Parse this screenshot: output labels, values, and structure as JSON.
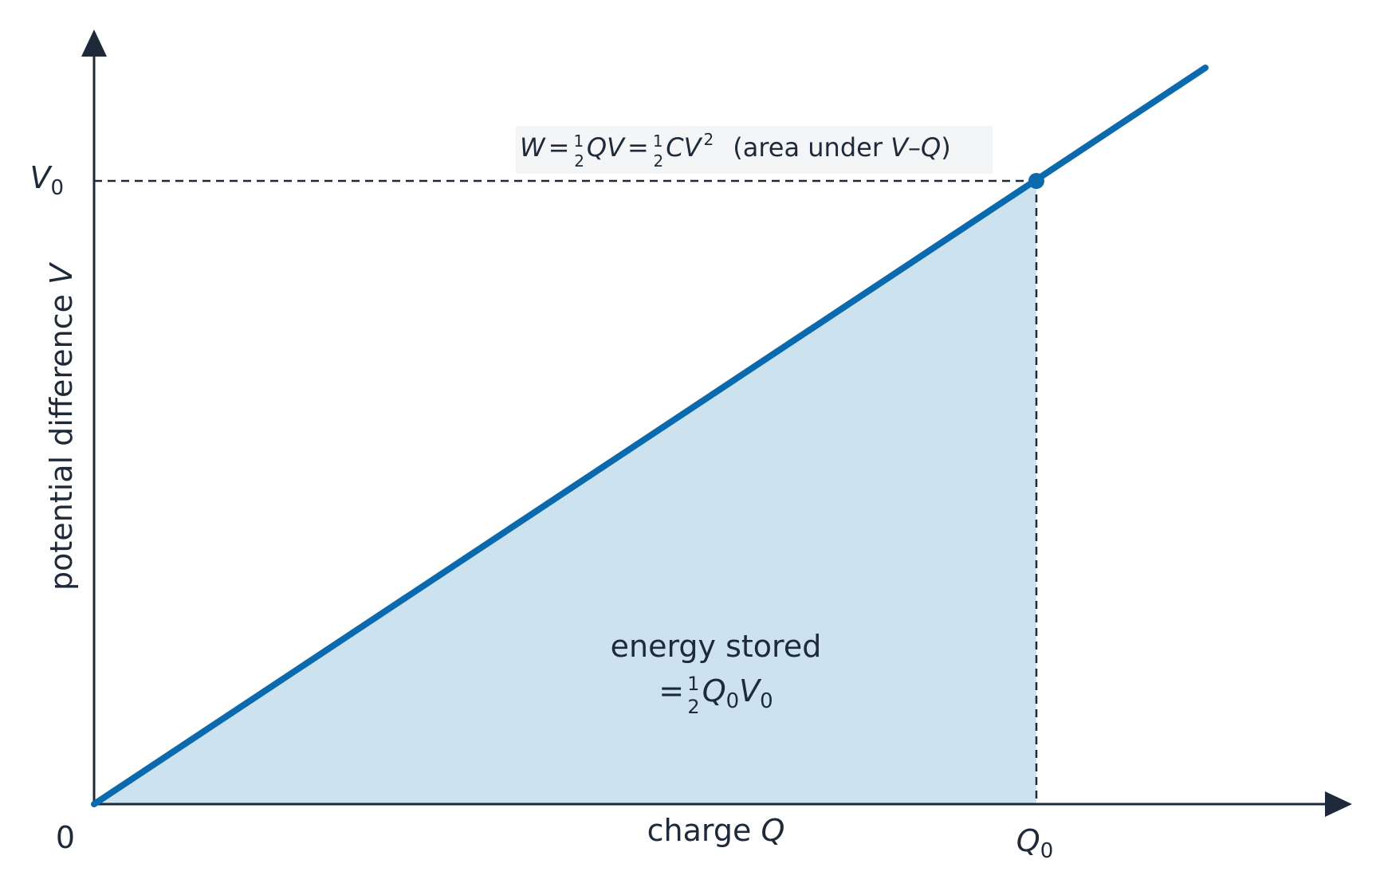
{
  "axes": {
    "y_label": [
      "potential difference ",
      "V"
    ],
    "x_label": [
      "charge ",
      "Q"
    ],
    "origin": "0",
    "v0": [
      "V",
      "0"
    ],
    "q0": [
      "Q",
      "0"
    ]
  },
  "formula": [
    "W",
    "=",
    "1",
    "2",
    "QV",
    "=",
    "1",
    "2",
    "CV",
    "2",
    "(area under ",
    "V",
    "–",
    "Q",
    ")"
  ],
  "energy_label": {
    "line1": "energy stored",
    "line2": [
      "=",
      "1",
      "2",
      "Q",
      "0",
      "V",
      "0"
    ]
  }
}
